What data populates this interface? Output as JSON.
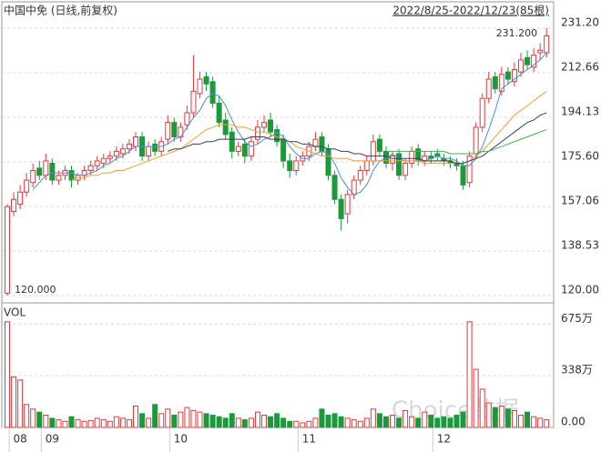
{
  "chart_data": {
    "type": "candlestick",
    "title": "中国中免 (日线,前复权)",
    "range_label": "2022/8/25-2022/12/23(85根)",
    "volume_label": "VOL",
    "watermark": "Choice数据",
    "low_label": "120.000",
    "high_label": "231.200",
    "up_color": "#e8383d",
    "down_color": "#1b9a3c",
    "categories": [
      null,
      null,
      "08",
      null,
      null,
      null,
      null,
      "09",
      null,
      null,
      null,
      null,
      null,
      null,
      null,
      null,
      null,
      null,
      null,
      null,
      null,
      null,
      null,
      null,
      null,
      null,
      null,
      "10",
      null,
      null,
      null,
      null,
      null,
      null,
      null,
      null,
      null,
      null,
      null,
      null,
      null,
      null,
      null,
      null,
      null,
      null,
      null,
      "11",
      null,
      null,
      null,
      null,
      null,
      null,
      null,
      null,
      null,
      null,
      null,
      null,
      null,
      null,
      null,
      null,
      null,
      null,
      null,
      null,
      "12",
      null,
      null,
      null,
      null,
      null,
      null,
      null,
      null,
      null,
      null,
      null,
      null,
      null,
      null,
      null,
      null
    ],
    "open": [
      121,
      155,
      158,
      163,
      167,
      173,
      170,
      175,
      168,
      170,
      172,
      168,
      170,
      172,
      174,
      175,
      177,
      178,
      179,
      181,
      182,
      186,
      178,
      183,
      180,
      185,
      192,
      186,
      191,
      196,
      204,
      211,
      209,
      200,
      193,
      188,
      180,
      183,
      178,
      185,
      190,
      193,
      189,
      185,
      176,
      172,
      176,
      178,
      182,
      186,
      181,
      170,
      160,
      154,
      162,
      168,
      172,
      176,
      185,
      180,
      175,
      179,
      170,
      175,
      181,
      176,
      178,
      179,
      177,
      176,
      175,
      174,
      167,
      179,
      190,
      202,
      211,
      205,
      213,
      209,
      213,
      219,
      215,
      221,
      221
    ],
    "high": [
      158,
      163,
      166,
      171,
      175,
      176,
      179,
      177,
      172,
      174,
      174,
      171,
      174,
      176,
      178,
      179,
      180,
      182,
      183,
      185,
      188,
      188,
      184,
      185,
      186,
      195,
      194,
      192,
      199,
      220,
      213,
      213,
      211,
      203,
      196,
      190,
      184,
      185,
      186,
      193,
      195,
      196,
      191,
      187,
      179,
      178,
      180,
      184,
      188,
      188,
      183,
      172,
      162,
      164,
      170,
      174,
      178,
      187,
      187,
      182,
      180,
      181,
      177,
      182,
      183,
      180,
      180,
      181,
      179,
      178,
      177,
      176,
      180,
      192,
      204,
      213,
      213,
      215,
      215,
      217,
      221,
      222,
      223,
      225,
      231.2
    ],
    "low": [
      120,
      153,
      156,
      161,
      165,
      168,
      168,
      166,
      166,
      168,
      165,
      166,
      168,
      170,
      172,
      173,
      175,
      176,
      177,
      179,
      180,
      176,
      176,
      178,
      178,
      183,
      184,
      184,
      189,
      194,
      202,
      205,
      198,
      190,
      185,
      177,
      178,
      175,
      176,
      183,
      188,
      186,
      182,
      173,
      169,
      170,
      174,
      176,
      180,
      178,
      168,
      158,
      147,
      150,
      160,
      166,
      170,
      174,
      178,
      173,
      172,
      168,
      168,
      173,
      174,
      174,
      175,
      176,
      174,
      173,
      172,
      164,
      165,
      177,
      188,
      200,
      204,
      203,
      208,
      207,
      211,
      214,
      213,
      218,
      219
    ],
    "close": [
      157,
      160,
      163,
      168,
      172,
      170,
      176,
      168,
      170,
      172,
      168,
      170,
      172,
      174,
      176,
      177,
      178,
      180,
      181,
      183,
      186,
      178,
      182,
      180,
      184,
      192,
      186,
      190,
      196,
      205,
      210,
      208,
      200,
      192,
      187,
      180,
      182,
      178,
      184,
      190,
      192,
      188,
      184,
      176,
      172,
      176,
      178,
      182,
      185,
      180,
      170,
      160,
      152,
      162,
      168,
      172,
      176,
      184,
      180,
      175,
      178,
      170,
      175,
      180,
      176,
      178,
      177,
      178,
      176,
      175,
      174,
      166,
      178,
      190,
      202,
      210,
      206,
      212,
      210,
      214,
      218,
      216,
      220,
      222,
      228
    ],
    "volume": [
      690,
      330,
      310,
      150,
      120,
      100,
      80,
      60,
      50,
      40,
      70,
      50,
      40,
      45,
      60,
      50,
      40,
      70,
      60,
      50,
      140,
      90,
      60,
      150,
      90,
      120,
      80,
      100,
      130,
      110,
      100,
      90,
      80,
      70,
      60,
      90,
      60,
      50,
      60,
      100,
      80,
      70,
      90,
      60,
      40,
      40,
      30,
      40,
      60,
      120,
      80,
      90,
      70,
      60,
      50,
      40,
      60,
      120,
      90,
      70,
      80,
      60,
      110,
      70,
      60,
      100,
      80,
      60,
      70,
      60,
      80,
      100,
      690,
      380,
      250,
      160,
      130,
      140,
      120,
      110,
      80,
      100,
      70,
      60,
      50
    ],
    "series": [
      {
        "color": "#4a90d9",
        "values": [
          null,
          null,
          null,
          null,
          164,
          167,
          170,
          171,
          171,
          171,
          171,
          170,
          170,
          171,
          172,
          174,
          175,
          177,
          178,
          180,
          182,
          182,
          182,
          182,
          182,
          183,
          185,
          186,
          190,
          194,
          197,
          202,
          204,
          203,
          199,
          193,
          188,
          184,
          182,
          183,
          185,
          186,
          188,
          186,
          182,
          179,
          177,
          177,
          179,
          180,
          179,
          175,
          169,
          165,
          162,
          163,
          166,
          172,
          176,
          177,
          179,
          177,
          176,
          176,
          176,
          176,
          177,
          178,
          177,
          177,
          176,
          174,
          174,
          177,
          182,
          189,
          197,
          206,
          208,
          210,
          212,
          214,
          216,
          218,
          221
        ]
      },
      {
        "color": "#f0a030",
        "values": [
          null,
          null,
          null,
          null,
          null,
          null,
          null,
          null,
          null,
          null,
          168,
          169,
          169,
          170,
          170,
          171,
          171,
          172,
          172,
          173,
          174,
          175,
          176,
          177,
          178,
          179,
          180,
          181,
          183,
          185,
          187,
          189,
          190,
          191,
          191,
          191,
          190,
          190,
          189,
          188,
          188,
          187,
          186,
          185,
          184,
          182,
          181,
          180,
          179,
          178,
          178,
          177,
          177,
          177,
          176,
          176,
          176,
          176,
          176,
          176,
          176,
          176,
          176,
          176,
          176,
          175,
          175,
          175,
          175,
          175,
          175,
          175,
          176,
          178,
          180,
          183,
          186,
          189,
          192,
          195,
          197,
          199,
          201,
          203,
          205
        ]
      },
      {
        "color": "#3a3f58",
        "values": [
          null,
          null,
          null,
          null,
          null,
          null,
          null,
          null,
          null,
          null,
          null,
          null,
          null,
          null,
          null,
          null,
          null,
          null,
          null,
          null,
          null,
          null,
          null,
          null,
          null,
          180,
          181,
          181,
          182,
          183,
          183,
          184,
          184,
          185,
          185,
          185,
          185,
          185,
          186,
          186,
          186,
          185,
          185,
          185,
          184,
          184,
          183,
          183,
          182,
          182,
          181,
          181,
          180,
          180,
          179,
          179,
          178,
          178,
          178,
          178,
          177,
          177,
          177,
          177,
          177,
          176,
          176,
          176,
          176,
          176,
          175,
          175,
          176,
          177,
          178,
          180,
          182,
          184,
          186,
          188,
          190,
          192,
          193,
          195,
          196
        ]
      },
      {
        "color": "#3cb44b",
        "values": [
          null,
          null,
          null,
          null,
          null,
          null,
          null,
          null,
          null,
          null,
          null,
          null,
          null,
          null,
          null,
          null,
          null,
          null,
          null,
          null,
          null,
          null,
          null,
          null,
          null,
          null,
          null,
          null,
          null,
          null,
          null,
          null,
          null,
          null,
          null,
          null,
          null,
          null,
          null,
          null,
          null,
          null,
          null,
          null,
          null,
          null,
          null,
          null,
          null,
          null,
          null,
          null,
          null,
          null,
          null,
          null,
          null,
          null,
          null,
          180,
          180,
          180,
          180,
          180,
          180,
          180,
          180,
          180,
          180,
          179,
          179,
          179,
          179,
          179,
          180,
          180,
          181,
          182,
          183,
          184,
          185,
          186,
          187,
          188,
          189
        ]
      }
    ],
    "ylim": [
      118.1,
      239.9
    ],
    "yticks": [
      {
        "value": 231.2,
        "label": "231.20"
      },
      212.66,
      194.13,
      {
        "value": 175.6,
        "label": "175.60"
      },
      157.06,
      138.53,
      {
        "value": 120,
        "label": "120.00"
      }
    ],
    "vol_ylim": [
      0,
      790
    ],
    "vol_yticks": [
      {
        "value": 675,
        "label": "675万"
      },
      {
        "value": 338,
        "label": "338万"
      },
      {
        "value": 0,
        "label": "0.00"
      }
    ],
    "grid": true
  }
}
